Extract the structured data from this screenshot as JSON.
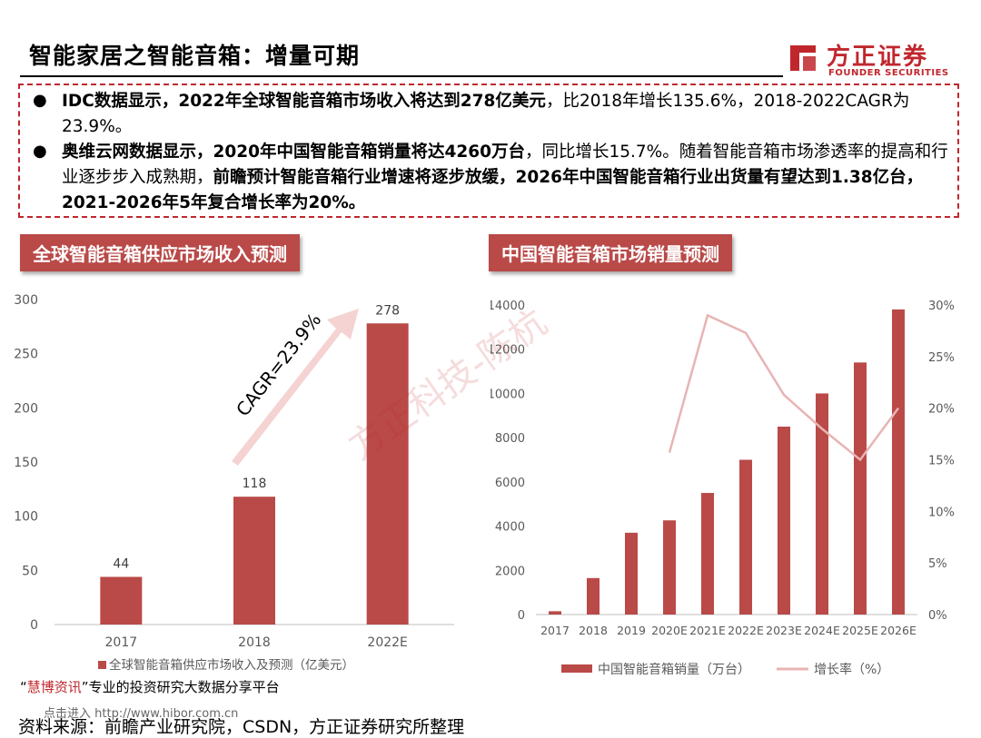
{
  "header": {
    "title": "智能家居之智能音箱：增量可期",
    "logo_cn": "方正证券",
    "logo_en": "FOUNDER SECURITIES"
  },
  "summary": {
    "bullet1_bold": "IDC数据显示，2022年全球智能音箱市场收入将达到278亿美元",
    "bullet1_rest": "，比2018年增长135.6%，2018-2022CAGR为23.9%。",
    "bullet2_bold1": "奥维云网数据显示，2020年中国智能音箱销量将达4260万台",
    "bullet2_mid": "，同比增长15.7%。随着智能音箱市场渗透率的提高和行业逐步步入成熟期，",
    "bullet2_bold2": "前瞻预计智能音箱行业增速将逐步放缓，2026年中国智能音箱行业出货量有望达到1.38亿台，2021-2026年5年复合增长率为20%。"
  },
  "panels": {
    "left_title": "全球智能音箱供应市场收入预测",
    "right_title": "中国智能音箱市场销量预测"
  },
  "chart_data": [
    {
      "type": "bar",
      "categories": [
        "2017",
        "2018",
        "2022E"
      ],
      "values": [
        44,
        118,
        278
      ],
      "data_labels": [
        "44",
        "118",
        "278"
      ],
      "series_name": "全球智能音箱供应市场收入及预测（亿美元）",
      "ylim": [
        0,
        300
      ],
      "yticks": [
        "0",
        "50",
        "100",
        "150",
        "200",
        "250",
        "300"
      ],
      "annotation": "CAGR=23.9%",
      "bar_color": "#b94a48",
      "grid": false,
      "legend": "bottom"
    },
    {
      "type": "bar+line",
      "categories": [
        "2017",
        "2018",
        "2019",
        "2020E",
        "2021E",
        "2022E",
        "2023E",
        "2024E",
        "2025E",
        "2026E"
      ],
      "series": [
        {
          "name": "中国智能音箱销量（万台）",
          "kind": "bar",
          "axis": "left",
          "values": [
            150,
            1650,
            3700,
            4260,
            5500,
            7000,
            8500,
            10000,
            11400,
            13800
          ]
        },
        {
          "name": "增长率（%）",
          "kind": "line",
          "axis": "right",
          "values": [
            null,
            null,
            null,
            0.157,
            0.29,
            0.273,
            0.213,
            0.18,
            0.15,
            0.2
          ]
        }
      ],
      "ylim_left": [
        0,
        14000
      ],
      "yticks_left": [
        "0",
        "2000",
        "4000",
        "6000",
        "8000",
        "10000",
        "12000",
        "14000"
      ],
      "ylim_right": [
        0,
        0.3
      ],
      "yticks_right": [
        "0%",
        "5%",
        "10%",
        "15%",
        "20%",
        "25%",
        "30%"
      ],
      "bar_color": "#b94a48",
      "line_color": "#e8b4b4",
      "grid": false,
      "legend": "bottom"
    }
  ],
  "footer": {
    "note_quote_open": "“",
    "note_highlight": "慧博资讯",
    "note_quote_close": "”",
    "note_rest": "专业的投资研究大数据分享平台",
    "faint_text": "点击进入 http://www.hibor.com.cn",
    "source": "资料来源：前瞻产业研究院，CSDN，方正证券研究所整理"
  },
  "watermark": "方正科技-陈杭",
  "colors": {
    "brand_red": "#c0272d",
    "bar": "#b94a48",
    "line": "#e8b4b4"
  }
}
